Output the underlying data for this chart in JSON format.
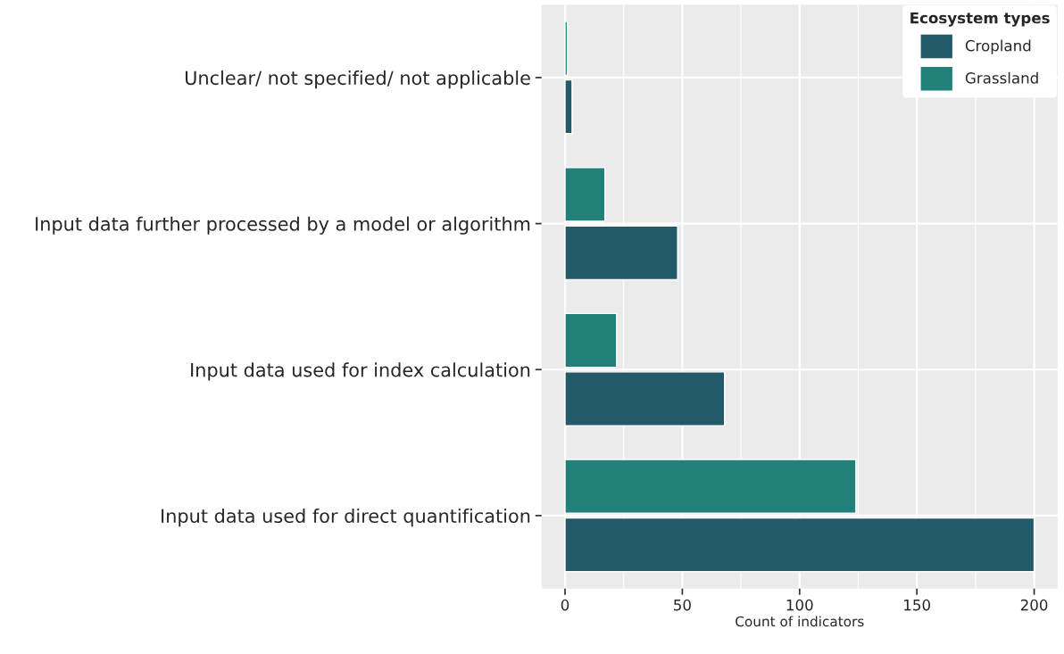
{
  "chart_data": {
    "type": "bar",
    "orientation": "horizontal",
    "xlabel": "Count of indicators",
    "legend_title": "Ecosystem types",
    "categories": [
      "Unclear/ not specified/ not applicable",
      "Input data further processed by a model or algorithm",
      "Input data used for index calculation",
      "Input data used for direct quantification"
    ],
    "series": [
      {
        "name": "Cropland",
        "color": "#225a6a",
        "values": [
          3,
          48,
          68,
          200
        ]
      },
      {
        "name": "Grassland",
        "color": "#21807a",
        "values": [
          1,
          17,
          22,
          124
        ]
      }
    ],
    "xlim": [
      -10,
      210
    ],
    "xticks": [
      0,
      50,
      100,
      150,
      200
    ],
    "grid": true,
    "legend": "top right"
  }
}
